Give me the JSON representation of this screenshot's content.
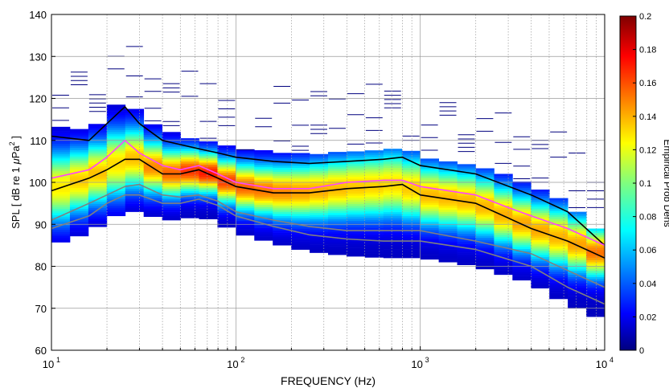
{
  "chart_data": {
    "type": "heatmap",
    "xlabel": "FREQUENCY (Hz)",
    "ylabel": "SPL [ dB re 1 μPa² ]",
    "ylabel_parts": {
      "main": "SPL [ dB re 1 ",
      "mu": "μ",
      "unit": "Pa",
      "sup": "2",
      "close": " ]"
    },
    "xscale": "log",
    "xlim": [
      10,
      10000
    ],
    "ylim": [
      60,
      140
    ],
    "grid": true,
    "x_ticks": [
      {
        "value": 10,
        "base": "10",
        "exp": "1"
      },
      {
        "value": 100,
        "base": "10",
        "exp": "2"
      },
      {
        "value": 1000,
        "base": "10",
        "exp": "3"
      },
      {
        "value": 10000,
        "base": "10",
        "exp": "4"
      }
    ],
    "y_ticks": [
      "60",
      "70",
      "80",
      "90",
      "100",
      "110",
      "120",
      "130",
      "140"
    ],
    "colorbar": {
      "label": "Empirical Prob Dens",
      "range": [
        0,
        0.2
      ],
      "ticks": [
        "0",
        "0.02",
        "0.04",
        "0.06",
        "0.08",
        "0.1",
        "0.12",
        "0.14",
        "0.16",
        "0.18",
        "0.2"
      ]
    },
    "series": [
      {
        "color": "#000000",
        "x": [
          10,
          16,
          20,
          25,
          30,
          40,
          50,
          63,
          80,
          100,
          160,
          250,
          400,
          630,
          800,
          1000,
          2000,
          4000,
          6300,
          10000
        ],
        "y": [
          111,
          110,
          114,
          118,
          114,
          110,
          109,
          108,
          107,
          106,
          105,
          104.5,
          105,
          105.5,
          106,
          104,
          102,
          97,
          93,
          85
        ]
      },
      {
        "color": "#ff44ff",
        "x": [
          10,
          16,
          20,
          25,
          30,
          40,
          50,
          63,
          80,
          100,
          160,
          250,
          400,
          630,
          800,
          1000,
          2000,
          3000,
          4000,
          6300,
          10000
        ],
        "y": [
          101,
          103,
          106,
          110,
          107,
          104,
          103,
          104,
          102,
          100,
          98.5,
          98.5,
          100,
          100.5,
          100.5,
          99,
          97,
          94,
          92,
          89,
          85
        ]
      },
      {
        "color": "#000000",
        "x": [
          10,
          16,
          20,
          25,
          30,
          40,
          50,
          63,
          80,
          100,
          160,
          250,
          400,
          630,
          800,
          1000,
          2000,
          3000,
          4000,
          6300,
          10000
        ],
        "y": [
          98,
          101,
          103,
          105.5,
          105.5,
          102,
          102,
          103,
          101,
          99,
          97.5,
          97.5,
          98.5,
          99,
          99.5,
          97,
          95,
          91.5,
          89,
          86,
          82
        ]
      },
      {
        "color": "#808080",
        "x": [
          10,
          16,
          20,
          25,
          30,
          40,
          50,
          63,
          80,
          100,
          160,
          250,
          400,
          630,
          1000,
          2000,
          4000,
          6300,
          10000
        ],
        "y": [
          91,
          95,
          97,
          99,
          99.5,
          97,
          96.5,
          97,
          95.5,
          93,
          91,
          89.5,
          88.5,
          88.5,
          88.5,
          86,
          83,
          79,
          75
        ]
      },
      {
        "color": "#808080",
        "x": [
          10,
          16,
          20,
          25,
          30,
          40,
          50,
          63,
          80,
          100,
          160,
          250,
          400,
          630,
          1000,
          2000,
          4000,
          6300,
          10000
        ],
        "y": [
          89,
          92,
          95,
          97,
          97,
          95,
          95,
          96,
          94.5,
          92,
          89.5,
          87.5,
          86.5,
          86,
          86,
          84,
          80,
          75,
          71
        ]
      }
    ]
  }
}
